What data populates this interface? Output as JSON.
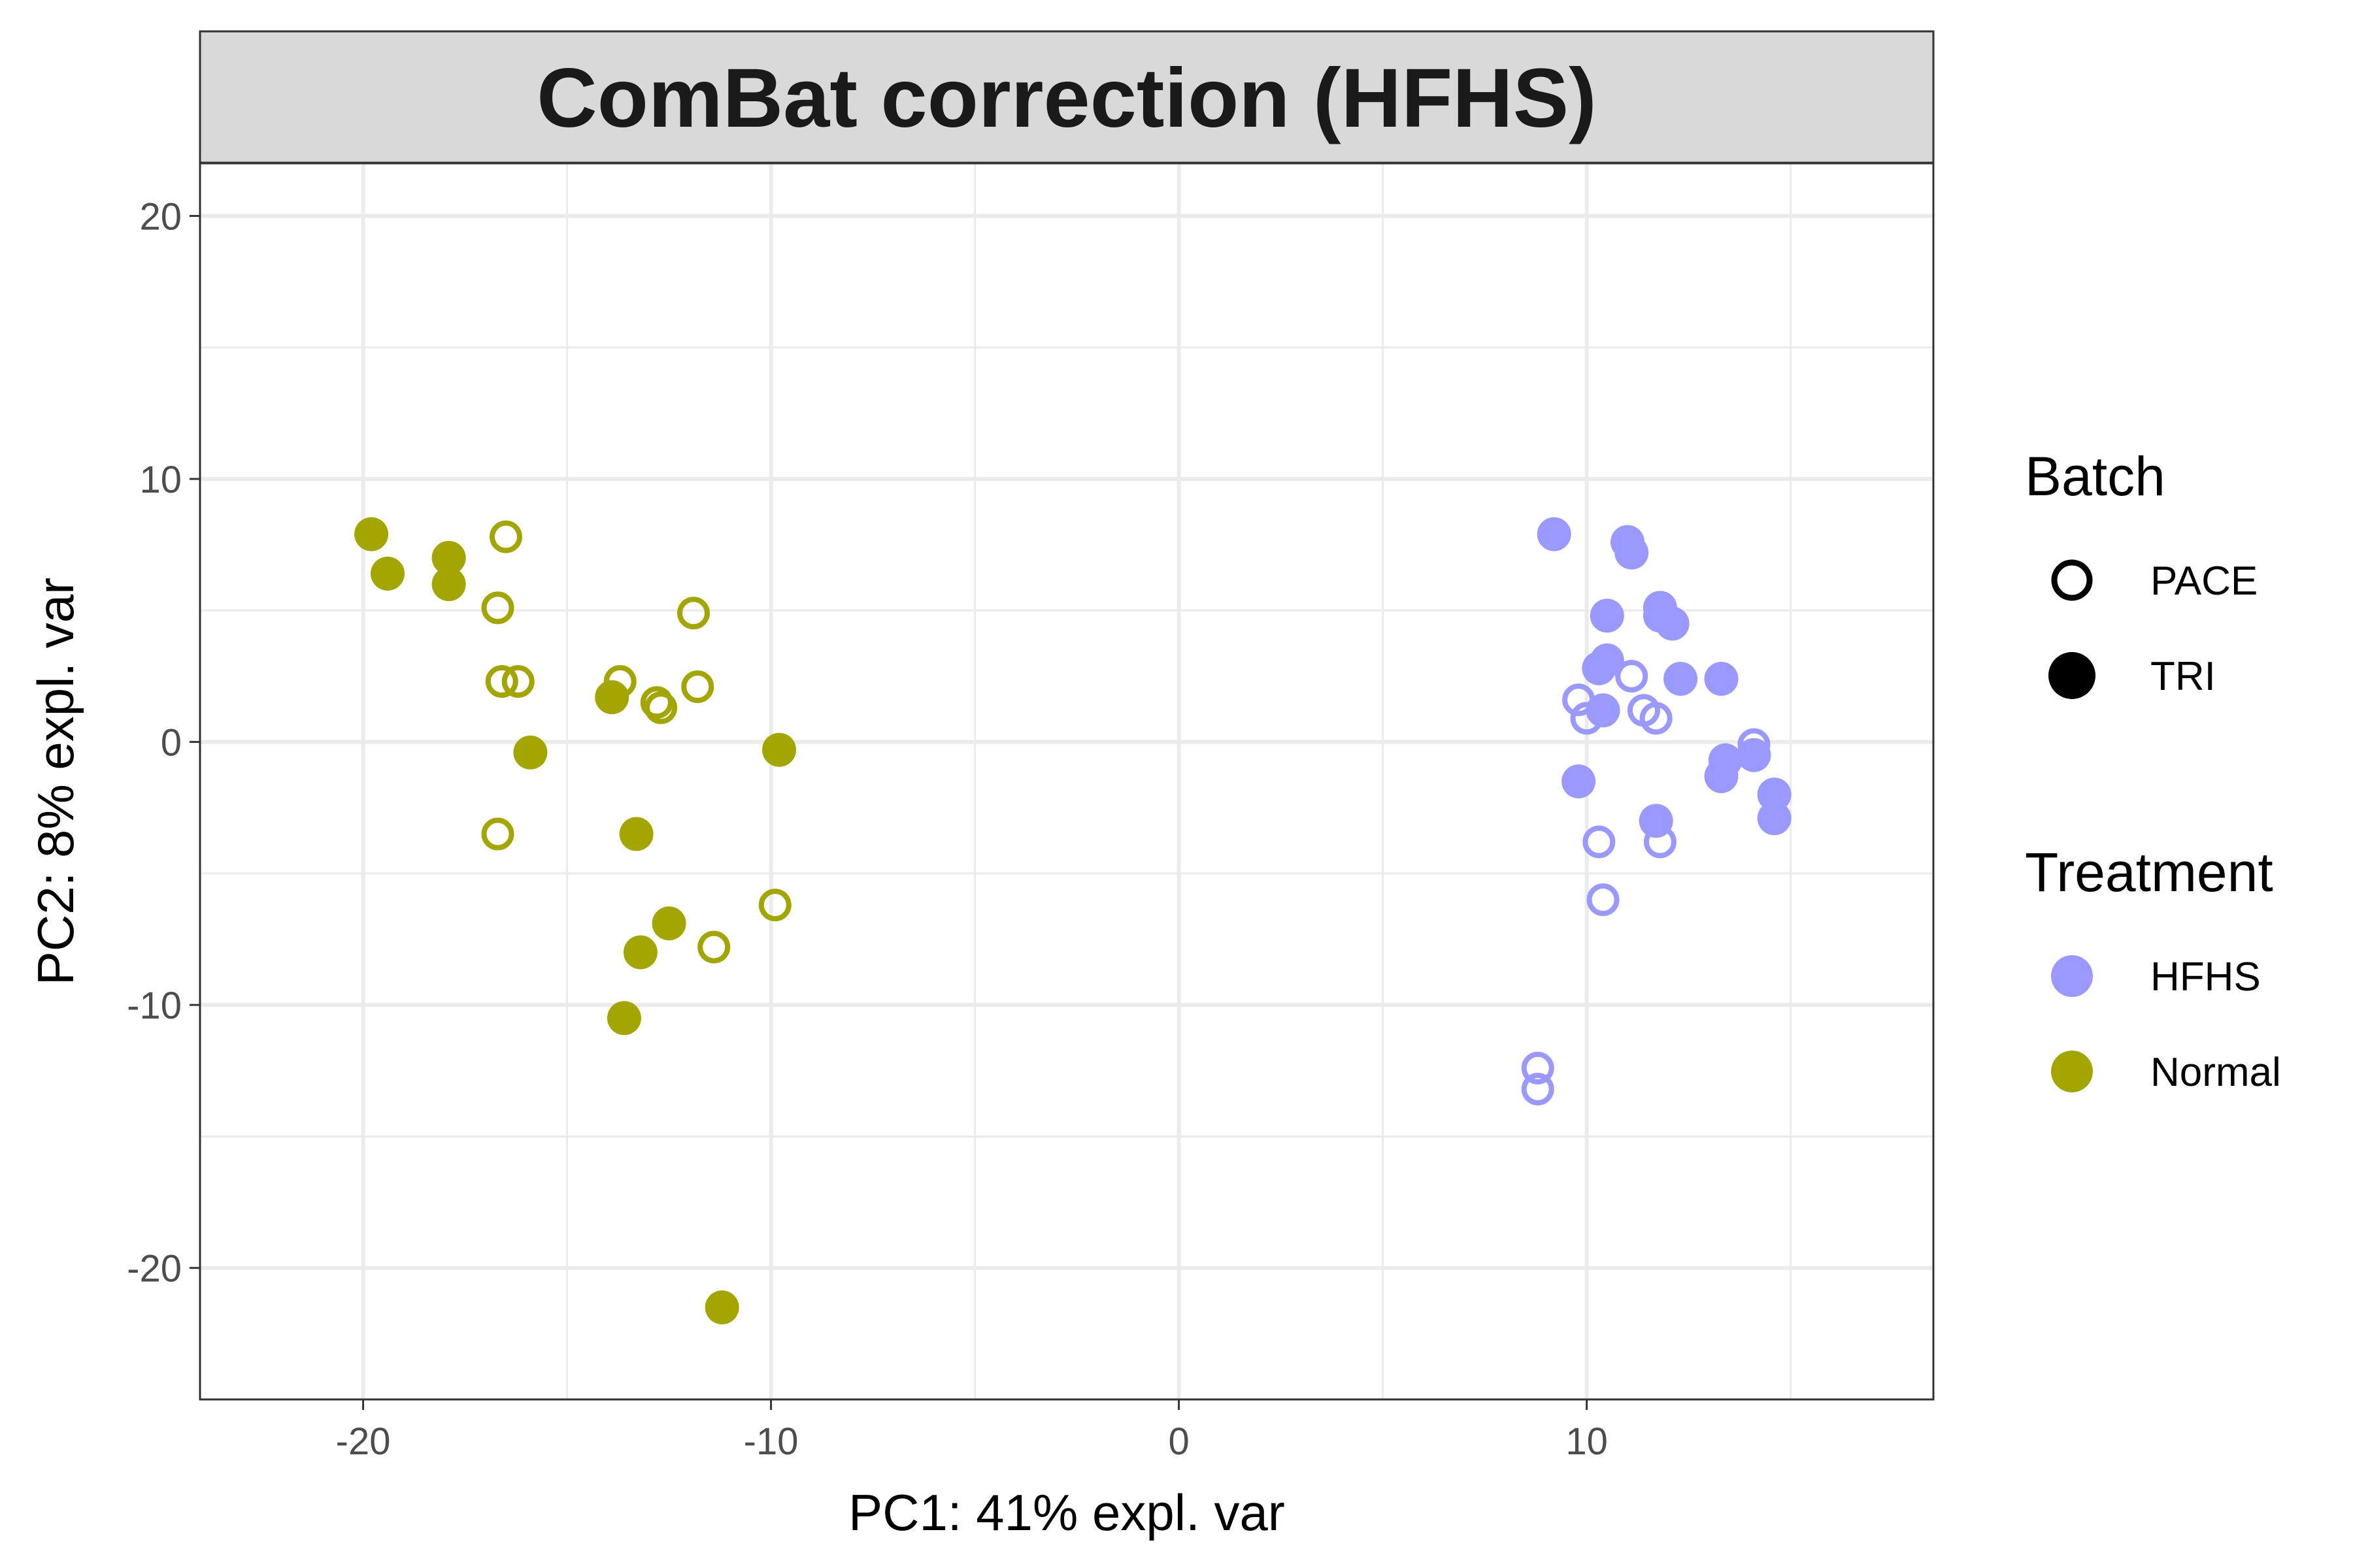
{
  "chart_data": {
    "type": "scatter",
    "title": "ComBat correction (HFHS)",
    "xlabel": "PC1: 41% expl. var",
    "ylabel": "PC2: 8% expl. var",
    "xlim": [
      -24,
      18.5
    ],
    "ylim": [
      -25,
      22
    ],
    "x_ticks": [
      -20,
      -10,
      0,
      10
    ],
    "y_ticks": [
      -20,
      -10,
      0,
      10,
      20
    ],
    "x_tick_labels": [
      "-20",
      "-10",
      "0",
      "10"
    ],
    "y_tick_labels": [
      "-20",
      "-10",
      "0",
      "10",
      "20"
    ],
    "grid": true,
    "legend_placement": "right",
    "legends": {
      "batch": {
        "title": "Batch",
        "items": [
          {
            "label": "PACE",
            "shape": "open-circle"
          },
          {
            "label": "TRI",
            "shape": "filled-circle"
          }
        ]
      },
      "treatment": {
        "title": "Treatment",
        "items": [
          {
            "label": "HFHS",
            "color": "#9999ff"
          },
          {
            "label": "Normal",
            "color": "#a3a500"
          }
        ]
      }
    },
    "series": [
      {
        "treatment": "Normal",
        "batch": "TRI",
        "color": "#a3a500",
        "shape": "filled-circle",
        "points": [
          [
            -19.8,
            7.9
          ],
          [
            -19.4,
            6.4
          ],
          [
            -17.9,
            7.0
          ],
          [
            -17.9,
            6.0
          ],
          [
            -15.9,
            -0.4
          ],
          [
            -13.9,
            1.7
          ],
          [
            -13.3,
            -3.5
          ],
          [
            -13.2,
            -8.0
          ],
          [
            -13.6,
            -10.5
          ],
          [
            -12.5,
            -6.9
          ],
          [
            -9.8,
            -0.3
          ],
          [
            -11.2,
            -21.5
          ]
        ]
      },
      {
        "treatment": "Normal",
        "batch": "PACE",
        "color": "#a3a500",
        "shape": "open-circle",
        "points": [
          [
            -16.5,
            7.8
          ],
          [
            -16.7,
            5.1
          ],
          [
            -16.6,
            2.3
          ],
          [
            -16.2,
            2.3
          ],
          [
            -16.7,
            -3.5
          ],
          [
            -13.7,
            2.3
          ],
          [
            -12.8,
            1.5
          ],
          [
            -12.7,
            1.3
          ],
          [
            -11.9,
            4.9
          ],
          [
            -11.8,
            2.1
          ],
          [
            -11.4,
            -7.8
          ],
          [
            -9.9,
            -6.2
          ]
        ]
      },
      {
        "treatment": "HFHS",
        "batch": "TRI",
        "color": "#9999ff",
        "shape": "filled-circle",
        "points": [
          [
            9.2,
            7.9
          ],
          [
            11.0,
            7.6
          ],
          [
            11.1,
            7.2
          ],
          [
            10.5,
            4.8
          ],
          [
            11.8,
            5.1
          ],
          [
            11.8,
            4.8
          ],
          [
            12.1,
            4.5
          ],
          [
            10.3,
            2.8
          ],
          [
            10.5,
            3.1
          ],
          [
            10.4,
            1.2
          ],
          [
            12.3,
            2.4
          ],
          [
            13.3,
            2.4
          ],
          [
            9.8,
            -1.5
          ],
          [
            11.7,
            -3.0
          ],
          [
            13.3,
            -1.3
          ],
          [
            13.4,
            -0.7
          ],
          [
            14.1,
            -0.5
          ],
          [
            14.6,
            -2.0
          ],
          [
            14.6,
            -2.9
          ]
        ]
      },
      {
        "treatment": "HFHS",
        "batch": "PACE",
        "color": "#9999ff",
        "shape": "open-circle",
        "points": [
          [
            11.1,
            2.5
          ],
          [
            9.8,
            1.6
          ],
          [
            10.0,
            0.9
          ],
          [
            11.4,
            1.2
          ],
          [
            11.7,
            0.9
          ],
          [
            14.1,
            -0.1
          ],
          [
            10.3,
            -3.8
          ],
          [
            11.8,
            -3.8
          ],
          [
            10.4,
            -6.0
          ],
          [
            8.8,
            -12.4
          ],
          [
            8.8,
            -13.2
          ]
        ]
      }
    ]
  }
}
